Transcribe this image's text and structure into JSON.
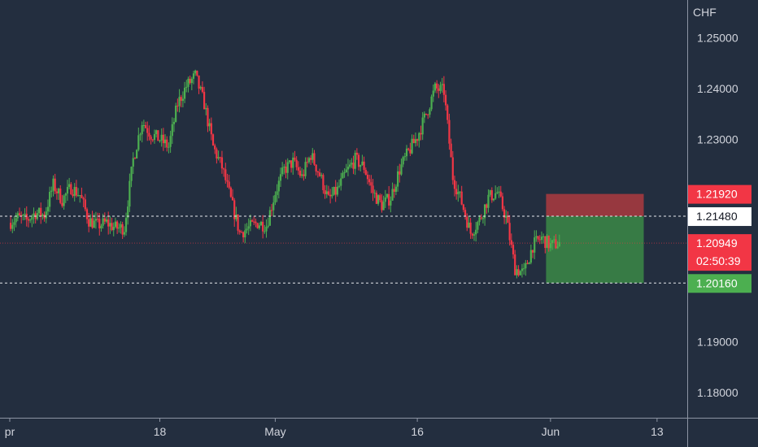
{
  "chart_data": {
    "type": "candlestick",
    "currency": "CHF",
    "ylim": [
      1.175,
      1.2575
    ],
    "y_ticks": [
      "1.25000",
      "1.24000",
      "1.23000",
      "1.19000",
      "1.18000"
    ],
    "y_tick_values": [
      1.25,
      1.24,
      1.23,
      1.19,
      1.18
    ],
    "x_ticks": [
      "pr",
      "18",
      "May",
      "16",
      "Jun",
      "13"
    ],
    "x_tick_days": [
      0.1,
      17,
      30,
      46,
      61,
      73
    ],
    "price_levels": {
      "stop": {
        "label": "1.21920",
        "value": 1.2192
      },
      "entry": {
        "label": "1.21480",
        "value": 1.2148
      },
      "current": {
        "label": "1.20949",
        "value": 1.20949,
        "countdown": "02:50:39"
      },
      "target": {
        "label": "1.20160",
        "value": 1.2016
      }
    },
    "position": {
      "side": "short",
      "start_day": 60.5,
      "end_day": 71.5
    },
    "price_path": [
      [
        0,
        1.2135
      ],
      [
        1,
        1.2145
      ],
      [
        2,
        1.214
      ],
      [
        3,
        1.2155
      ],
      [
        4,
        1.215
      ],
      [
        5,
        1.221
      ],
      [
        6,
        1.218
      ],
      [
        7,
        1.2205
      ],
      [
        8,
        1.219
      ],
      [
        9,
        1.214
      ],
      [
        10,
        1.213
      ],
      [
        11,
        1.2135
      ],
      [
        12,
        1.2125
      ],
      [
        13,
        1.2125
      ],
      [
        14,
        1.226
      ],
      [
        15,
        1.2335
      ],
      [
        16,
        1.231
      ],
      [
        17,
        1.23
      ],
      [
        18,
        1.2285
      ],
      [
        19,
        1.237
      ],
      [
        20,
        1.2405
      ],
      [
        21,
        1.2425
      ],
      [
        22,
        1.237
      ],
      [
        23,
        1.2285
      ],
      [
        24,
        1.2245
      ],
      [
        25,
        1.218
      ],
      [
        26,
        1.2115
      ],
      [
        27,
        1.2125
      ],
      [
        28,
        1.2135
      ],
      [
        29,
        1.213
      ],
      [
        30,
        1.2195
      ],
      [
        31,
        1.224
      ],
      [
        32,
        1.2255
      ],
      [
        33,
        1.2225
      ],
      [
        34,
        1.227
      ],
      [
        35,
        1.223
      ],
      [
        36,
        1.218
      ],
      [
        37,
        1.22
      ],
      [
        38,
        1.2235
      ],
      [
        39,
        1.226
      ],
      [
        40,
        1.2245
      ],
      [
        41,
        1.2195
      ],
      [
        42,
        1.217
      ],
      [
        43,
        1.2185
      ],
      [
        44,
        1.224
      ],
      [
        45,
        1.2275
      ],
      [
        46,
        1.2305
      ],
      [
        47,
        1.235
      ],
      [
        48,
        1.24
      ],
      [
        49,
        1.2395
      ],
      [
        50,
        1.2225
      ],
      [
        51,
        1.2175
      ],
      [
        52,
        1.2115
      ],
      [
        53,
        1.214
      ],
      [
        54,
        1.2185
      ],
      [
        55,
        1.2195
      ],
      [
        56,
        1.2145
      ],
      [
        57,
        1.2045
      ],
      [
        58,
        1.2035
      ],
      [
        59,
        1.209
      ],
      [
        60,
        1.2105
      ],
      [
        61,
        1.209
      ],
      [
        62,
        1.2095
      ]
    ]
  }
}
